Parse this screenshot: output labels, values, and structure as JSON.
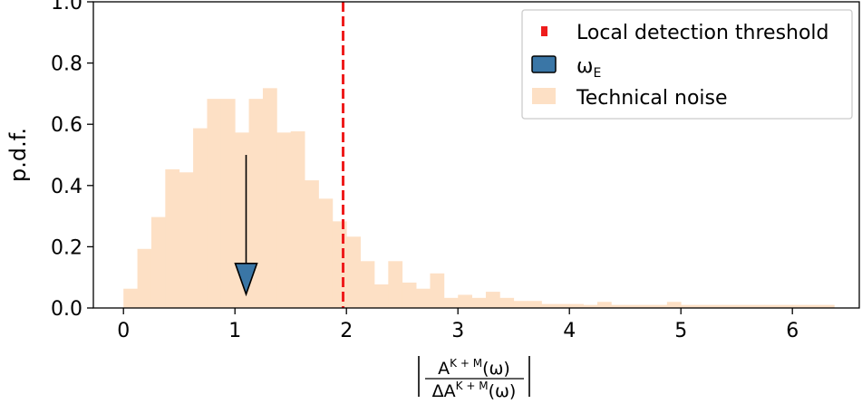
{
  "chart_data": {
    "type": "bar",
    "title": "",
    "ylabel": "p.d.f.",
    "xlabel": {
      "numerator": "A",
      "numerator_sup": "K + M",
      "numerator_suffix": "(ω)",
      "denominator": "ΔA",
      "denominator_sup": "K + M",
      "denominator_suffix": "(ω)"
    },
    "xlim": [
      -0.27,
      6.6
    ],
    "ylim": [
      0.0,
      1.0
    ],
    "xticks": [
      "0",
      "1",
      "2",
      "3",
      "4",
      "5",
      "6"
    ],
    "yticks": [
      "0.0",
      "0.2",
      "0.4",
      "0.6",
      "0.8",
      "1.0"
    ],
    "grid": false,
    "legend_position": "top-right",
    "colors": {
      "histogram": "#fde0c5",
      "threshold": "#ee1c1c",
      "marker": "#3a76a6",
      "axes": "#000000"
    },
    "series": [
      {
        "name": "Technical noise",
        "kind": "histogram",
        "bin_width": 0.125,
        "bins": [
          [
            0.0,
            0.063
          ],
          [
            0.125,
            0.193
          ],
          [
            0.25,
            0.297
          ],
          [
            0.375,
            0.453
          ],
          [
            0.5,
            0.443
          ],
          [
            0.625,
            0.587
          ],
          [
            0.75,
            0.683
          ],
          [
            0.875,
            0.683
          ],
          [
            1.0,
            0.573
          ],
          [
            1.125,
            0.683
          ],
          [
            1.25,
            0.718
          ],
          [
            1.375,
            0.573
          ],
          [
            1.5,
            0.577
          ],
          [
            1.625,
            0.417
          ],
          [
            1.75,
            0.357
          ],
          [
            1.875,
            0.283
          ],
          [
            2.0,
            0.233
          ],
          [
            2.125,
            0.153
          ],
          [
            2.25,
            0.077
          ],
          [
            2.375,
            0.153
          ],
          [
            2.5,
            0.083
          ],
          [
            2.625,
            0.063
          ],
          [
            2.75,
            0.113
          ],
          [
            2.875,
            0.033
          ],
          [
            3.0,
            0.043
          ],
          [
            3.125,
            0.033
          ],
          [
            3.25,
            0.053
          ],
          [
            3.375,
            0.033
          ],
          [
            3.5,
            0.023
          ],
          [
            3.625,
            0.023
          ],
          [
            3.75,
            0.013
          ],
          [
            3.875,
            0.013
          ],
          [
            4.0,
            0.013
          ],
          [
            4.125,
            0.01
          ],
          [
            4.25,
            0.02
          ],
          [
            4.375,
            0.01
          ],
          [
            4.5,
            0.01
          ],
          [
            4.625,
            0.01
          ],
          [
            4.75,
            0.01
          ],
          [
            4.875,
            0.02
          ],
          [
            5.0,
            0.01
          ],
          [
            5.125,
            0.01
          ],
          [
            5.25,
            0.01
          ],
          [
            5.375,
            0.01
          ],
          [
            5.5,
            0.01
          ],
          [
            5.625,
            0.01
          ],
          [
            5.75,
            0.01
          ],
          [
            5.875,
            0.01
          ],
          [
            6.0,
            0.01
          ],
          [
            6.125,
            0.01
          ],
          [
            6.25,
            0.01
          ]
        ]
      },
      {
        "name": "Local detection threshold",
        "kind": "vline",
        "x": 1.97
      },
      {
        "name": "ω",
        "name_sub": "E",
        "kind": "arrow",
        "x": 1.1,
        "y_start": 0.5,
        "y_end": 0.045
      }
    ]
  }
}
